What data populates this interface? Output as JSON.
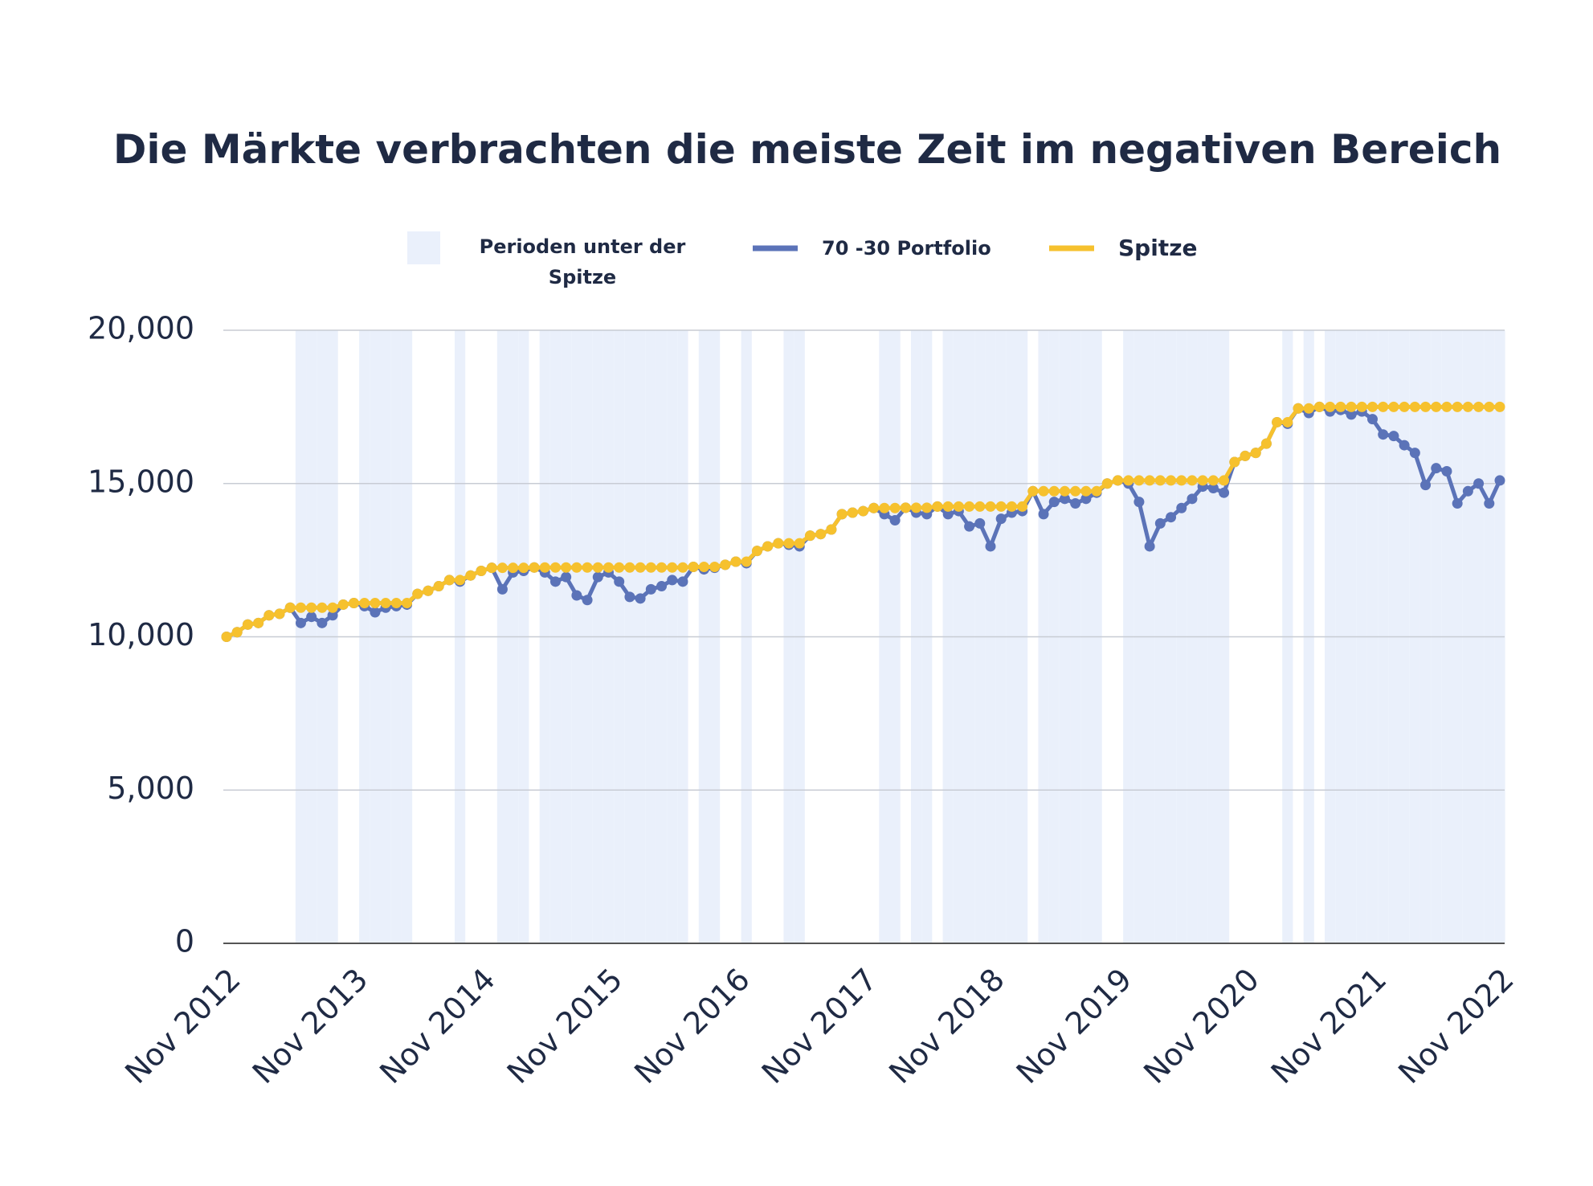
{
  "chart_data": {
    "type": "line",
    "title": "Die Märkte verbrachten die meiste Zeit im negativen Bereich",
    "categories": [
      "Nov 2012",
      null,
      null,
      null,
      null,
      null,
      null,
      null,
      null,
      null,
      null,
      null,
      "Nov 2013",
      null,
      null,
      null,
      null,
      null,
      null,
      null,
      null,
      null,
      null,
      null,
      "Nov 2014",
      null,
      null,
      null,
      null,
      null,
      null,
      null,
      null,
      null,
      null,
      null,
      "Nov 2015",
      null,
      null,
      null,
      null,
      null,
      null,
      null,
      null,
      null,
      null,
      null,
      "Nov 2016",
      null,
      null,
      null,
      null,
      null,
      null,
      null,
      null,
      null,
      null,
      null,
      "Nov 2017",
      null,
      null,
      null,
      null,
      null,
      null,
      null,
      null,
      null,
      null,
      null,
      "Nov 2018",
      null,
      null,
      null,
      null,
      null,
      null,
      null,
      null,
      null,
      null,
      null,
      "Nov 2019",
      null,
      null,
      null,
      null,
      null,
      null,
      null,
      null,
      null,
      null,
      null,
      "Nov 2020",
      null,
      null,
      null,
      null,
      null,
      null,
      null,
      null,
      null,
      null,
      null,
      "Nov 2021",
      null,
      null,
      null,
      null,
      null,
      null,
      null,
      null,
      null,
      null,
      null,
      "Nov 2022"
    ],
    "series": [
      {
        "name": "70 -30 Portfolio",
        "color": "#5b73b8",
        "values": [
          10000,
          10150,
          10400,
          10450,
          10700,
          10750,
          10950,
          10450,
          10650,
          10450,
          10700,
          11050,
          11100,
          11000,
          10800,
          10950,
          11000,
          11050,
          11400,
          11500,
          11650,
          11850,
          11800,
          12000,
          12150,
          12250,
          11550,
          12100,
          12150,
          12260,
          12100,
          11800,
          11950,
          11350,
          11200,
          11950,
          12100,
          11800,
          11300,
          11250,
          11550,
          11650,
          11850,
          11800,
          12280,
          12200,
          12250,
          12350,
          12450,
          12400,
          12800,
          12950,
          13050,
          13000,
          12950,
          13300,
          13350,
          13500,
          14000,
          14050,
          14100,
          14200,
          14000,
          13800,
          14210,
          14050,
          14000,
          14250,
          14000,
          14100,
          13600,
          13700,
          12950,
          13850,
          14050,
          14100,
          14750,
          14000,
          14400,
          14500,
          14350,
          14500,
          14700,
          15000,
          15100,
          15000,
          14400,
          12950,
          13700,
          13900,
          14200,
          14500,
          14900,
          14850,
          14700,
          15700,
          15900,
          16000,
          16300,
          17000,
          16950,
          17450,
          17300,
          17500,
          17350,
          17400,
          17250,
          17350,
          17100,
          16600,
          16550,
          16250,
          16000,
          14950,
          15500,
          15400,
          14350,
          14750,
          15000,
          14350,
          15100
        ]
      },
      {
        "name": "Spitze",
        "color": "#f6c12e",
        "values": [
          10000,
          10150,
          10400,
          10450,
          10700,
          10750,
          10950,
          10950,
          10950,
          10950,
          10950,
          11050,
          11100,
          11100,
          11100,
          11100,
          11100,
          11100,
          11400,
          11500,
          11650,
          11850,
          11850,
          12000,
          12150,
          12250,
          12250,
          12250,
          12250,
          12260,
          12260,
          12260,
          12260,
          12260,
          12260,
          12260,
          12260,
          12260,
          12260,
          12260,
          12260,
          12260,
          12260,
          12260,
          12280,
          12280,
          12280,
          12350,
          12450,
          12450,
          12800,
          12950,
          13050,
          13050,
          13050,
          13300,
          13350,
          13500,
          14000,
          14050,
          14100,
          14200,
          14200,
          14200,
          14210,
          14210,
          14210,
          14250,
          14250,
          14250,
          14250,
          14250,
          14250,
          14250,
          14250,
          14250,
          14750,
          14750,
          14750,
          14750,
          14750,
          14750,
          14750,
          15000,
          15100,
          15100,
          15100,
          15100,
          15100,
          15100,
          15100,
          15100,
          15100,
          15100,
          15100,
          15700,
          15900,
          16000,
          16300,
          17000,
          17000,
          17450,
          17450,
          17500,
          17500,
          17500,
          17500,
          17500,
          17500,
          17500,
          17500,
          17500,
          17500,
          17500,
          17500,
          17500,
          17500,
          17500,
          17500,
          17500,
          17500
        ]
      }
    ],
    "shading": {
      "name": "Perioden unter der Spitze",
      "color": "#eaf0fb"
    },
    "ylim": [
      0,
      20000
    ],
    "yticks": [
      0,
      {
        "value": 5000,
        "label": "5,000"
      },
      {
        "value": 10000,
        "label": "10,000"
      },
      {
        "value": 15000,
        "label": "15,000"
      },
      {
        "value": 20000,
        "label": "20,000"
      }
    ],
    "grid": true
  }
}
